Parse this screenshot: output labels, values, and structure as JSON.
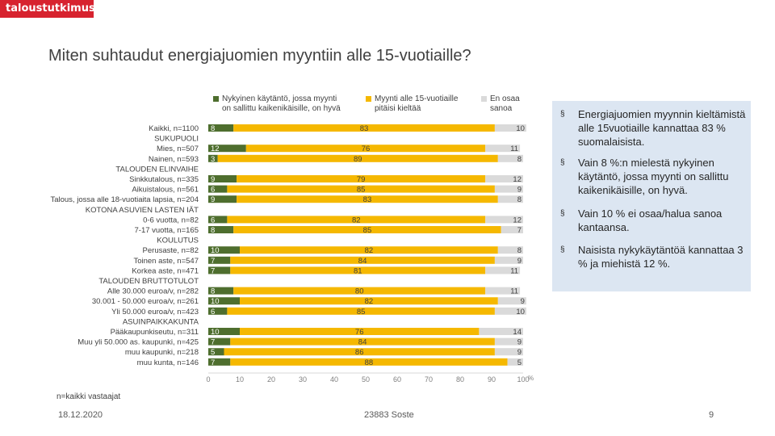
{
  "header": {
    "logo": "taloustutkimus"
  },
  "chart_title": "Miten suhtaudut energiajuomien myyntiin alle 15-vuotiaille?",
  "chart_data": {
    "type": "bar",
    "orientation": "horizontal",
    "stacked": true,
    "xlim": [
      0,
      100
    ],
    "x_ticks": [
      "0",
      "10",
      "20",
      "30",
      "40",
      "50",
      "60",
      "70",
      "80",
      "90",
      "100"
    ],
    "x_unit": "%",
    "series": [
      {
        "name": "Nykyinen käytäntö, jossa myynti on sallittu kaikenikäisille, on hyvä",
        "color": "#4e6e2e"
      },
      {
        "name": "Myynti alle 15-vuotiaille pitäisi kieltää",
        "color": "#f5b800"
      },
      {
        "name": "En osaa sanoa",
        "color": "#dadada"
      }
    ],
    "rows": [
      {
        "label": "Kaikki, n=1100",
        "values": [
          8,
          83,
          10
        ]
      },
      {
        "label": "SUKUPUOLI",
        "values": null
      },
      {
        "label": "Mies, n=507",
        "values": [
          12,
          76,
          11
        ]
      },
      {
        "label": "Nainen, n=593",
        "values": [
          3,
          89,
          8
        ]
      },
      {
        "label": "TALOUDEN ELINVAIHE",
        "values": null
      },
      {
        "label": "Sinkkutalous, n=335",
        "values": [
          9,
          79,
          12
        ]
      },
      {
        "label": "Aikuistalous, n=561",
        "values": [
          6,
          85,
          9
        ]
      },
      {
        "label": "Talous, jossa alle 18-vuotiaita lapsia, n=204",
        "values": [
          9,
          83,
          8
        ]
      },
      {
        "label": "KOTONA ASUVIEN LASTEN IÄT",
        "values": null
      },
      {
        "label": "0-6 vuotta, n=82",
        "values": [
          6,
          82,
          12
        ]
      },
      {
        "label": "7-17 vuotta, n=165",
        "values": [
          8,
          85,
          7
        ]
      },
      {
        "label": "KOULUTUS",
        "values": null
      },
      {
        "label": "Perusaste, n=82",
        "values": [
          10,
          82,
          8
        ]
      },
      {
        "label": "Toinen aste, n=547",
        "values": [
          7,
          84,
          9
        ]
      },
      {
        "label": "Korkea aste, n=471",
        "values": [
          7,
          81,
          11
        ]
      },
      {
        "label": "TALOUDEN BRUTTOTULOT",
        "values": null
      },
      {
        "label": "Alle 30.000 euroa/v, n=282",
        "values": [
          8,
          80,
          11
        ]
      },
      {
        "label": "30.001 - 50.000 euroa/v, n=261",
        "values": [
          10,
          82,
          9
        ]
      },
      {
        "label": "Yli 50.000 euroa/v, n=423",
        "values": [
          6,
          85,
          10
        ]
      },
      {
        "label": "ASUINPAIKKAKUNTA",
        "values": null
      },
      {
        "label": "Pääkaupunkiseutu, n=311",
        "values": [
          10,
          76,
          14
        ]
      },
      {
        "label": "Muu yli 50.000 as. kaupunki, n=425",
        "values": [
          7,
          84,
          9
        ]
      },
      {
        "label": "muu kaupunki, n=218",
        "values": [
          5,
          86,
          9
        ]
      },
      {
        "label": "muu kunta, n=146",
        "values": [
          7,
          88,
          5
        ]
      }
    ]
  },
  "legend": {
    "item1": "Nykyinen käytäntö, jossa myynti\non sallittu kaikenikäisille, on hyvä",
    "item2": "Myynti alle 15-vuotiaille\npitäisi kieltää",
    "item3": "En osaa\nsanoa"
  },
  "bullets": [
    {
      "text": "Energiajuomien myynnin kieltämistä alle 15vuotiaille kannattaa 83 % suomalaisista."
    },
    {
      "text": "Vain 8 %:n mielestä nykyinen käytäntö, jossa myynti on sallittu kaikenikäisille, on hyvä."
    },
    {
      "text": "Vain 10 % ei osaa/halua sanoa kantaansa."
    },
    {
      "text": "Naisista nykykäytäntöä kannattaa 3 % ja miehistä 12 %."
    }
  ],
  "bullet_marker": "§",
  "note": "n=kaikki vastaajat",
  "footer": {
    "date": "18.12.2020",
    "project": "23883 Soste",
    "page": "9"
  }
}
